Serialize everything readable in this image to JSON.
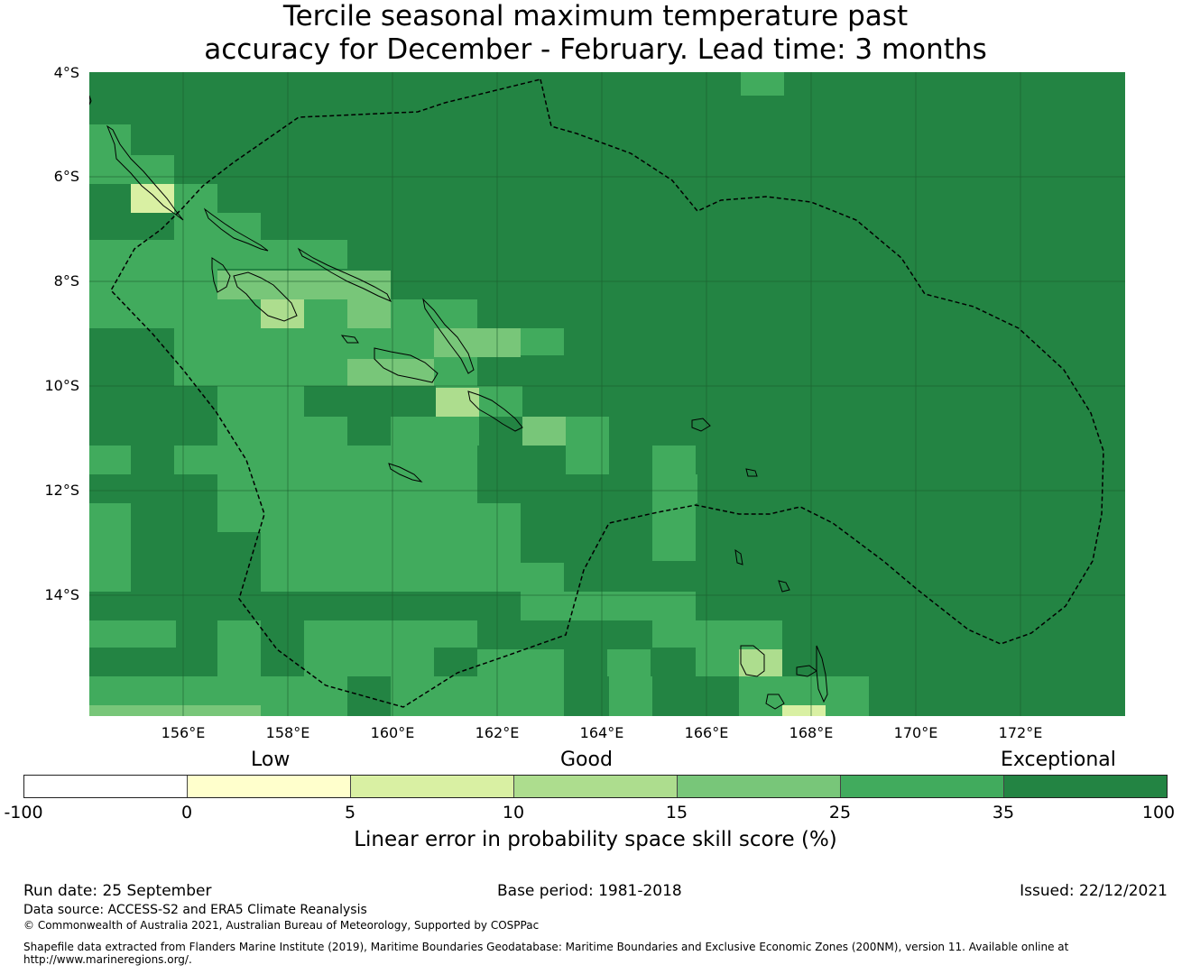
{
  "title": {
    "line1": "Tercile seasonal maximum temperature past",
    "line2": "accuracy for December - February. Lead time: 3 months"
  },
  "map": {
    "lat_labels": [
      "4°S",
      "6°S",
      "8°S",
      "10°S",
      "12°S",
      "14°S"
    ],
    "lon_labels": [
      "156°E",
      "158°E",
      "160°E",
      "162°E",
      "164°E",
      "166°E",
      "168°E",
      "170°E",
      "172°E"
    ]
  },
  "legend": {
    "categories": [
      "Low",
      "Good",
      "Exceptional"
    ],
    "ticks": [
      "-100",
      "0",
      "5",
      "10",
      "15",
      "25",
      "35",
      "100"
    ],
    "colors": [
      "#ffffff",
      "#ffffcc",
      "#d9f0a3",
      "#addd8e",
      "#78c679",
      "#41ab5d",
      "#238443"
    ],
    "label": "Linear error in probability space skill score (%)"
  },
  "footer": {
    "run_date": "Run date: 25 September",
    "base_period": "Base period: 1981-2018",
    "issued": "Issued: 22/12/2021",
    "data_source": "Data source: ACCESS-S2 and ERA5 Climate Reanalysis",
    "copyright": "© Commonwealth of Australia 2021, Australian Bureau of Meteorology, Supported by COSPPac",
    "shapefile_line1": "Shapefile data extracted from Flanders Marine Institute (2019), Maritime Boundaries Geodatabase: Maritime Boundaries and Exclusive Economic Zones (200NM), version 11. Available online at",
    "shapefile_line2": "http://www.marineregions.org/."
  }
}
